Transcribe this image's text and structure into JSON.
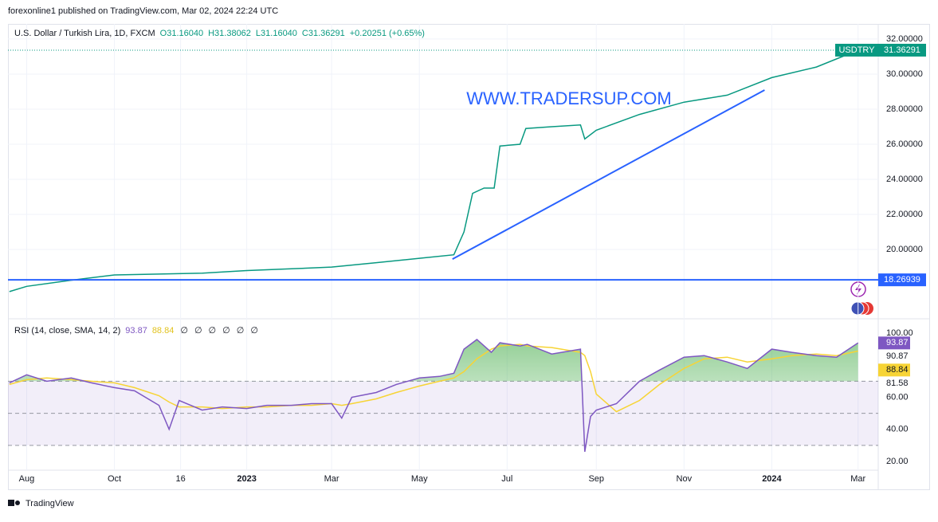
{
  "header": {
    "published": "forexonline1 published on TradingView.com, Mar 02, 2024 22:24 UTC"
  },
  "footer": {
    "brand": "TradingView"
  },
  "chart_data": [
    {
      "type": "line",
      "title": "U.S. Dollar / Turkish Lira, 1D, FXCM",
      "ohlc": [
        "O31.16040",
        "H31.38062",
        "L31.16040",
        "C31.36291",
        "+0.20251 (+0.65%)"
      ],
      "annotation": "WWW.TRADERSUP.COM",
      "symbol": "USDTRY",
      "last_price": 31.36291,
      "x": [
        "2022-07-20",
        "2022-08-01",
        "2022-09-01",
        "2022-10-01",
        "2022-11-01",
        "2022-12-01",
        "2023-01-01",
        "2023-02-01",
        "2023-03-01",
        "2023-04-01",
        "2023-05-01",
        "2023-05-25",
        "2023-06-01",
        "2023-06-07",
        "2023-06-15",
        "2023-06-22",
        "2023-06-26",
        "2023-07-10",
        "2023-07-14",
        "2023-08-01",
        "2023-08-21",
        "2023-08-24",
        "2023-09-01",
        "2023-10-01",
        "2023-11-01",
        "2023-12-01",
        "2024-01-01",
        "2024-02-01",
        "2024-03-01"
      ],
      "series": [
        {
          "name": "USDTRY",
          "color": "#089981",
          "values": [
            17.6,
            17.9,
            18.25,
            18.55,
            18.6,
            18.65,
            18.8,
            18.9,
            19.0,
            19.25,
            19.5,
            19.7,
            21.0,
            23.2,
            23.5,
            23.5,
            25.9,
            26.0,
            26.9,
            27.0,
            27.1,
            26.3,
            26.8,
            27.7,
            28.4,
            28.8,
            29.8,
            30.4,
            31.36291
          ]
        }
      ],
      "xlim": [
        "2022-07-19",
        "2024-03-15"
      ],
      "xticks": [
        {
          "value": "2022-08-01",
          "label": "Aug"
        },
        {
          "value": "2022-10-01",
          "label": "Oct"
        },
        {
          "value": "2022-11-16",
          "label": "16"
        },
        {
          "value": "2023-01-01",
          "label": "2023"
        },
        {
          "value": "2023-03-01",
          "label": "Mar"
        },
        {
          "value": "2023-05-01",
          "label": "May"
        },
        {
          "value": "2023-07-01",
          "label": "Jul"
        },
        {
          "value": "2023-09-01",
          "label": "Sep"
        },
        {
          "value": "2023-11-01",
          "label": "Nov"
        },
        {
          "value": "2024-01-01",
          "label": "2024"
        },
        {
          "value": "2024-03-01",
          "label": "Mar"
        }
      ],
      "ylim": [
        16.05,
        32.86
      ],
      "yticks": [
        {
          "value": 20,
          "label": "20.00000"
        },
        {
          "value": 22,
          "label": "22.00000"
        },
        {
          "value": 24,
          "label": "24.00000"
        },
        {
          "value": 26,
          "label": "26.00000"
        },
        {
          "value": 28,
          "label": "28.00000"
        },
        {
          "value": 30,
          "label": "30.00000"
        },
        {
          "value": 32,
          "label": "32.00000"
        }
      ],
      "hline": {
        "value": 18.26939,
        "color": "#2962ff"
      },
      "trendline": {
        "x": [
          "2023-05-24",
          "2023-12-27"
        ],
        "values": [
          19.45,
          29.09
        ],
        "color": "#2962ff"
      }
    },
    {
      "type": "line",
      "title": "RSI (14, close, SMA, 14, 2)",
      "na_marks": [
        "∅",
        "∅",
        "∅",
        "∅",
        "∅",
        "∅"
      ],
      "x": [
        "2022-07-20",
        "2022-08-01",
        "2022-08-15",
        "2022-09-01",
        "2022-09-15",
        "2022-10-01",
        "2022-10-15",
        "2022-11-01",
        "2022-11-08",
        "2022-11-15",
        "2022-12-01",
        "2022-12-15",
        "2023-01-01",
        "2023-01-15",
        "2023-02-01",
        "2023-02-15",
        "2023-03-01",
        "2023-03-08",
        "2023-03-15",
        "2023-04-01",
        "2023-04-15",
        "2023-05-01",
        "2023-05-15",
        "2023-05-25",
        "2023-06-01",
        "2023-06-10",
        "2023-06-20",
        "2023-06-26",
        "2023-07-10",
        "2023-07-15",
        "2023-08-01",
        "2023-08-21",
        "2023-08-24",
        "2023-08-28",
        "2023-09-01",
        "2023-09-15",
        "2023-10-01",
        "2023-10-15",
        "2023-11-01",
        "2023-11-15",
        "2023-12-01",
        "2023-12-15",
        "2024-01-01",
        "2024-01-15",
        "2024-02-01",
        "2024-02-15",
        "2024-03-01"
      ],
      "series": [
        {
          "name": "RSI",
          "color": "#7e57c2",
          "values": [
            69,
            74,
            70,
            72,
            69,
            66,
            64,
            55,
            40,
            58,
            52,
            54,
            53,
            55,
            55,
            56,
            56,
            47,
            60,
            63,
            68,
            72,
            73,
            75,
            90,
            96,
            88,
            94,
            92,
            93,
            87,
            90,
            26,
            48,
            52,
            56,
            70,
            77,
            85,
            86,
            82,
            78,
            90,
            88,
            86,
            85,
            93.87
          ]
        },
        {
          "name": "SMA",
          "color": "#f7d435",
          "values": [
            68,
            71,
            72,
            71,
            70,
            69,
            66,
            61,
            57,
            54,
            54,
            53,
            54,
            54,
            55,
            55,
            56,
            55,
            56,
            59,
            63,
            67,
            70,
            72,
            76,
            84,
            90,
            92,
            93,
            92,
            91,
            88,
            86,
            76,
            62,
            51,
            58,
            68,
            78,
            84,
            85,
            82,
            84,
            86,
            87,
            86,
            88.84
          ]
        }
      ],
      "ylim": [
        14.53,
        108.94
      ],
      "yticks": [
        {
          "value": 20,
          "label": "20.00"
        },
        {
          "value": 40,
          "label": "40.00"
        },
        {
          "value": 60,
          "label": "60.00"
        },
        {
          "value": 100,
          "label": "100.00"
        }
      ],
      "levels": [
        30,
        50,
        70
      ],
      "scale_values": [
        90.87,
        81.58
      ]
    }
  ]
}
